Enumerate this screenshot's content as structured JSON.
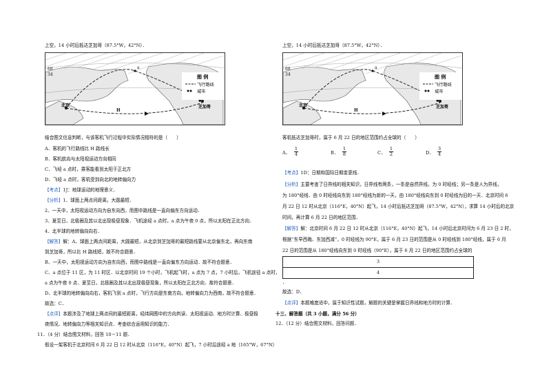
{
  "left": {
    "header": "上空，14 小时后抵达芝加哥（87.5°W，42°N）．",
    "map": {
      "lat_label_1": "68",
      "lat_label_2": "34",
      "label_a": "a",
      "label_beijing": "北京",
      "label_chicago": "芝加哥",
      "label_H": "H",
      "legend_title": "图 例",
      "legend_route": "飞行路线",
      "legend_city": "城市"
    },
    "question": "结合图文信息判断，与该客机飞行过程中实际情况相符的是（　　）",
    "options": [
      "A．客机的飞行路线比 H 路线长",
      "B．客机航向与太阳视运动方向相同",
      "C．飞经 a 点时，乘客能看到太阳于正北方",
      "D．飞经 a 点时，客机受到向北的地转偏向力"
    ],
    "kaodian_tag": "【考点】",
    "kaodian_text": "1J：地球运动的地理意义．",
    "fenxi_tag": "【分析】",
    "fenxi_lines": [
      "1、球面上两点间距离，大圆最短．",
      "2、一天中，太阳视运动方向为自东向西，而图中路线是一直向偏东方向运动．",
      "3、夏至日，北极圈及其以北出现极昼现象．飞机途经 a 点时，a 点为午夜 0 点，所以太阳在正北方向．",
      "4、北半球的地转偏向向右．"
    ],
    "jieda_tag": "【解答】",
    "jieda_lines": [
      "解：A、球面上两点间距离，大圆最短，从北京到芝加哥的最短路线要从北京偏东北，再向东南",
      "到芝加哥，所以比 H 路线短，故不符合题意．",
      "B、一天中，太阳视运动方向为自东向西，而图中路线是一直向偏东方向运动．故不符合题意．",
      "C、a 点位于 11 区，为 11 时区．以北京时间 19 个小时，飞机起飞时，a 点为 7 点，7 小时后，飞机途径 a 点时，",
      "a 点为午夜 0 点．夏至日，北极圈及其以北出现极昼现象，所以太阳在正北方向．故符合题意．",
      "D、北半球的地转偏向向右，客机飞到 a 点时，飞行方向是东南方向，地转偏向力为西南，故不符合题意．",
      "故选：C．"
    ],
    "dianping_tag": "【点评】",
    "dianping_lines": [
      "本题涉及了地球上两点间的最短距离，经纬网图中的方向判读、太阳视运动、地方时计算、极昼极",
      "夜情况、地转偏向力等相关知识点．考查综合运用知识的能力．"
    ],
    "q11_line1": "11．（4 分）结合图文材料，回答 10－11 题．",
    "q11_line2": "假设一架客机于北京时间 6 月 22 日 12 时从北京（116°E，40°N）起飞，7 小时后途经 a 地（165°W，67°N）"
  },
  "right": {
    "header": "上空，14 小时后抵达芝加哥（87.5°W，42°N）．",
    "question": "客机抵达芝加哥时，属于 6 月 22 日的地区范围约占全球的（　　）",
    "options": [
      {
        "letter": "A．",
        "num": "1",
        "den": "4"
      },
      {
        "letter": "B．",
        "num": "1",
        "den": "8"
      },
      {
        "letter": "C．",
        "num": "1",
        "den": "2"
      },
      {
        "letter": "D．",
        "num": "3",
        "den": "4"
      }
    ],
    "kaodian_tag": "【考点】",
    "kaodian_text": "1D：日期和国际日期变更线．",
    "fenxi_tag": "【分析】",
    "fenxi_lines": [
      "主要考查了日界线的相关知识，日界线有两条，一条是自然界线，为 0 时经线；另一条是人为界线，",
      "为 180°经线．由 0 时经线向东到 180°经线为新的一天，由 180°经线向东到 0 时经线为旧的一天．北京时间 6",
      "月 22 日 12 时从北京（116°E，40°N）起飞，14 小时后抵达芝加哥（87.5°W，42°N），求算 14 小时后的北京",
      "时间，再计算 6 月 22 日的地区范围．"
    ],
    "jieda_tag": "【解答】",
    "jieda_lines": [
      "解：北京时间 6 月 22 日 12 时从北京（116°E，40°N）起飞，14 小时后北京时间为 6 月 23 日 2 时，",
      "根据“东早西晚、东加西减”，0 时经线为 90°E，属于 6 月 23 日的范围是从 0 时经线到 180°经线，属于 6 月",
      "22 日的范围是从 180°经线向东到 0 时经线（90°E），属于 6 月 22 日的地区范围约占全球的"
    ],
    "table_top": "3",
    "table_bottom": "4",
    "dot": "．",
    "answer": "故选：D．",
    "dianping_tag": "【点评】",
    "dianping_lines": [
      "本题难度适中，属于知识性试题，解题的关键是掌握日界线和地方时的计算．"
    ],
    "section": "十三、解答题（共 3 小题，满分 56 分）",
    "q12": "12．（12 分）结合图文材料，回答问题．"
  }
}
